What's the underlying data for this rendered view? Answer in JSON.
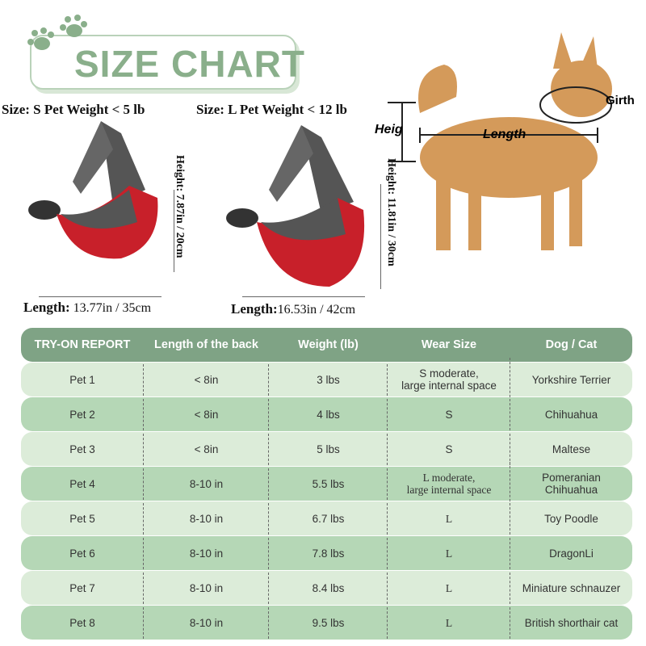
{
  "title": "SIZE CHART",
  "small": {
    "label": "Size: S Pet Weight < 5 lb",
    "length_label": "Length:",
    "length": "13.77in / 35cm",
    "height": "Height: 7.87in / 20cm"
  },
  "large": {
    "label": "Size: L Pet Weight < 12 lb",
    "length_label": "Length:",
    "length": "16.53in / 42cm",
    "height": "Height: 11.81in / 30cm"
  },
  "dog": {
    "height": "Heig",
    "length": "Length",
    "girth": "Girth"
  },
  "colors": {
    "header": "#7fa385",
    "row_light": "#dcecd9",
    "row_dark": "#b5d7b6",
    "title": "#8aaf8b",
    "bag_red": "#c8202a",
    "bag_gray": "#4a4a4a"
  },
  "table": {
    "headers": [
      "TRY-ON REPORT",
      "Length of the back",
      "Weight (lb)",
      "Wear Size",
      "Dog / Cat"
    ],
    "rows": [
      [
        "Pet 1",
        "< 8in",
        "3 lbs",
        "S moderate,\nlarge internal space",
        "Yorkshire Terrier"
      ],
      [
        "Pet 2",
        "< 8in",
        "4 lbs",
        "S",
        "Chihuahua"
      ],
      [
        "Pet 3",
        "< 8in",
        "5 lbs",
        "S",
        "Maltese"
      ],
      [
        "Pet 4",
        "8-10 in",
        "5.5 lbs",
        "L moderate,\nlarge internal space",
        "Pomeranian\nChihuahua"
      ],
      [
        "Pet 5",
        "8-10 in",
        "6.7 lbs",
        "L",
        "Toy Poodle"
      ],
      [
        "Pet 6",
        "8-10 in",
        "7.8 lbs",
        "L",
        "DragonLi"
      ],
      [
        "Pet 7",
        "8-10 in",
        "8.4 lbs",
        "L",
        "Miniature schnauzer"
      ],
      [
        "Pet 8",
        "8-10 in",
        "9.5 lbs",
        "L",
        "British shorthair cat"
      ]
    ]
  }
}
